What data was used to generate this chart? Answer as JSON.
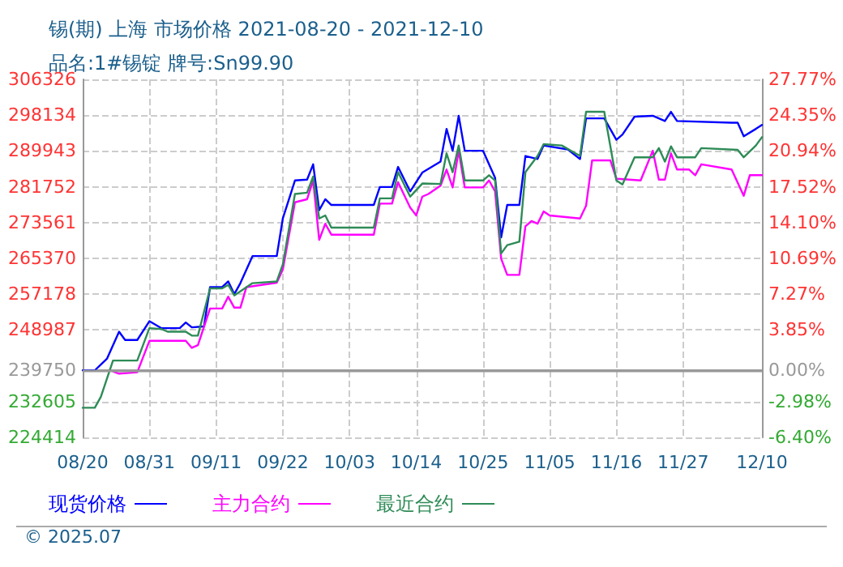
{
  "chart_data": {
    "type": "line",
    "title": "锡(期) 上海 市场价格 2021-08-20 - 2021-12-10",
    "subtitle": "品名:1#锡锭 牌号:Sn99.90",
    "annotations": [
      "© 2025.07"
    ],
    "xlim": [
      "2021-08-20",
      "2021-12-10"
    ],
    "xticks": [
      {
        "value": "2021-08-20",
        "label": "08/20"
      },
      {
        "value": "2021-08-31",
        "label": "08/31"
      },
      {
        "value": "2021-09-11",
        "label": "09/11"
      },
      {
        "value": "2021-09-22",
        "label": "09/22"
      },
      {
        "value": "2021-10-03",
        "label": "10/03"
      },
      {
        "value": "2021-10-14",
        "label": "10/14"
      },
      {
        "value": "2021-10-25",
        "label": "10/25"
      },
      {
        "value": "2021-11-05",
        "label": "11/05"
      },
      {
        "value": "2021-11-16",
        "label": "11/16"
      },
      {
        "value": "2021-11-27",
        "label": "11/27"
      },
      {
        "value": "2021-12-10",
        "label": "12/10"
      }
    ],
    "ylim": [
      224414,
      306326
    ],
    "yticks": [
      224414,
      232605,
      239750,
      248987,
      257178,
      265370,
      273561,
      281752,
      289943,
      298134,
      306326
    ],
    "y2lim": [
      -6.4,
      27.77
    ],
    "y2ticks": [
      {
        "value": -6.4,
        "label": "-6.40%"
      },
      {
        "value": -2.98,
        "label": "-2.98%"
      },
      {
        "value": 0,
        "label": "0.00%"
      },
      {
        "value": 3.85,
        "label": "3.85%"
      },
      {
        "value": 7.27,
        "label": "7.27%"
      },
      {
        "value": 10.69,
        "label": "10.69%"
      },
      {
        "value": 14.1,
        "label": "14.10%"
      },
      {
        "value": 17.52,
        "label": "17.52%"
      },
      {
        "value": 20.94,
        "label": "20.94%"
      },
      {
        "value": 24.35,
        "label": "24.35%"
      },
      {
        "value": 27.77,
        "label": "27.77%"
      }
    ],
    "ref_lines": [
      {
        "axis": "y",
        "value": 239750,
        "color": "#999999"
      }
    ],
    "grid": true,
    "legend": "bottom",
    "marker": "none",
    "line_style": "solid",
    "series": [
      {
        "name": "现货价格",
        "color": "#0000ff",
        "x": [
          "2021-08-20",
          "2021-08-22",
          "2021-08-24",
          "2021-08-26",
          "2021-08-27",
          "2021-08-29",
          "2021-08-31",
          "2021-09-02",
          "2021-09-05",
          "2021-09-06",
          "2021-09-07",
          "2021-09-09",
          "2021-09-10",
          "2021-09-12",
          "2021-09-13",
          "2021-09-14",
          "2021-09-15",
          "2021-09-17",
          "2021-09-21",
          "2021-09-22",
          "2021-09-24",
          "2021-09-26",
          "2021-09-27",
          "2021-09-28",
          "2021-09-29",
          "2021-09-30",
          "2021-10-07",
          "2021-10-08",
          "2021-10-10",
          "2021-10-11",
          "2021-10-13",
          "2021-10-15",
          "2021-10-18",
          "2021-10-19",
          "2021-10-20",
          "2021-10-21",
          "2021-10-22",
          "2021-10-25",
          "2021-10-26",
          "2021-10-27",
          "2021-10-28",
          "2021-10-29",
          "2021-10-31",
          "2021-11-01",
          "2021-11-03",
          "2021-11-04",
          "2021-11-08",
          "2021-11-10",
          "2021-11-11",
          "2021-11-14",
          "2021-11-16",
          "2021-11-17",
          "2021-11-19",
          "2021-11-22",
          "2021-11-24",
          "2021-11-25",
          "2021-11-26",
          "2021-12-05",
          "2021-12-06",
          "2021-12-07",
          "2021-12-09",
          "2021-12-10"
        ],
        "values": [
          239750,
          239750,
          242400,
          248600,
          246700,
          246700,
          251000,
          249400,
          249400,
          250700,
          249600,
          249800,
          258800,
          258800,
          260100,
          257200,
          259700,
          265900,
          265900,
          274500,
          283200,
          283400,
          286900,
          276400,
          278900,
          277600,
          277600,
          281700,
          281700,
          286300,
          280700,
          285000,
          287500,
          295000,
          290000,
          298000,
          290000,
          290000,
          286900,
          283800,
          270200,
          277600,
          277600,
          288800,
          288100,
          291200,
          290300,
          288100,
          297400,
          297400,
          292500,
          293700,
          297800,
          298000,
          296800,
          298900,
          296800,
          296400,
          296400,
          293300,
          295000,
          295900
        ]
      },
      {
        "name": "主力合约",
        "color": "#ff00ff",
        "x": [
          "2021-08-25",
          "2021-08-26",
          "2021-08-29",
          "2021-08-31",
          "2021-09-06",
          "2021-09-07",
          "2021-09-08",
          "2021-09-10",
          "2021-09-12",
          "2021-09-13",
          "2021-09-14",
          "2021-09-15",
          "2021-09-16",
          "2021-09-21",
          "2021-09-22",
          "2021-09-24",
          "2021-09-26",
          "2021-09-27",
          "2021-09-28",
          "2021-09-29",
          "2021-09-30",
          "2021-10-07",
          "2021-10-08",
          "2021-10-10",
          "2021-10-11",
          "2021-10-13",
          "2021-10-14",
          "2021-10-15",
          "2021-10-16",
          "2021-10-18",
          "2021-10-19",
          "2021-10-20",
          "2021-10-21",
          "2021-10-22",
          "2021-10-25",
          "2021-10-26",
          "2021-10-27",
          "2021-10-28",
          "2021-10-29",
          "2021-10-31",
          "2021-11-01",
          "2021-11-02",
          "2021-11-03",
          "2021-11-04",
          "2021-11-05",
          "2021-11-10",
          "2021-11-11",
          "2021-11-12",
          "2021-11-15",
          "2021-11-16",
          "2021-11-20",
          "2021-11-22",
          "2021-11-23",
          "2021-11-24",
          "2021-11-25",
          "2021-11-26",
          "2021-11-28",
          "2021-11-29",
          "2021-11-30",
          "2021-12-05",
          "2021-12-07",
          "2021-12-08",
          "2021-12-10"
        ],
        "values": [
          239500,
          239000,
          239300,
          246500,
          246500,
          244900,
          245500,
          253900,
          253900,
          256600,
          254100,
          254100,
          258800,
          259800,
          262800,
          278200,
          278900,
          283200,
          269600,
          273300,
          270800,
          270800,
          277900,
          277900,
          282800,
          277000,
          275200,
          279500,
          280100,
          282000,
          285700,
          281600,
          290000,
          281600,
          281600,
          283200,
          280700,
          265300,
          261600,
          261600,
          272700,
          273900,
          273300,
          276100,
          275200,
          274500,
          277400,
          287800,
          287800,
          283600,
          283200,
          290000,
          283400,
          283400,
          289400,
          285700,
          285700,
          284400,
          286900,
          285700,
          279700,
          284400,
          284400
        ]
      },
      {
        "name": "最近合约",
        "color": "#2e8b57",
        "x": [
          "2021-08-20",
          "2021-08-22",
          "2021-08-23",
          "2021-08-25",
          "2021-08-29",
          "2021-08-31",
          "2021-09-02",
          "2021-09-03",
          "2021-09-06",
          "2021-09-07",
          "2021-09-08",
          "2021-09-10",
          "2021-09-12",
          "2021-09-13",
          "2021-09-14",
          "2021-09-17",
          "2021-09-21",
          "2021-09-22",
          "2021-09-24",
          "2021-09-26",
          "2021-09-27",
          "2021-09-28",
          "2021-09-29",
          "2021-09-30",
          "2021-10-07",
          "2021-10-08",
          "2021-10-10",
          "2021-10-11",
          "2021-10-13",
          "2021-10-15",
          "2021-10-18",
          "2021-10-19",
          "2021-10-20",
          "2021-10-21",
          "2021-10-22",
          "2021-10-25",
          "2021-10-26",
          "2021-10-27",
          "2021-10-28",
          "2021-10-29",
          "2021-10-31",
          "2021-11-01",
          "2021-11-03",
          "2021-11-04",
          "2021-11-07",
          "2021-11-10",
          "2021-11-11",
          "2021-11-14",
          "2021-11-16",
          "2021-11-17",
          "2021-11-19",
          "2021-11-22",
          "2021-11-23",
          "2021-11-24",
          "2021-11-25",
          "2021-11-26",
          "2021-11-29",
          "2021-11-30",
          "2021-12-06",
          "2021-12-07",
          "2021-12-09",
          "2021-12-10"
        ],
        "values": [
          231200,
          231200,
          233700,
          242000,
          242000,
          249400,
          249200,
          248600,
          248600,
          247700,
          247700,
          258500,
          258500,
          259300,
          256900,
          259700,
          260100,
          264000,
          280100,
          280400,
          284100,
          274500,
          275200,
          272400,
          272400,
          279100,
          279100,
          285100,
          279500,
          282500,
          282400,
          289400,
          285100,
          291200,
          283200,
          283200,
          284400,
          283200,
          266500,
          268400,
          269200,
          285100,
          288800,
          291500,
          291200,
          288800,
          298900,
          298900,
          283200,
          282300,
          288500,
          288500,
          290600,
          287500,
          291000,
          288500,
          288500,
          290600,
          290200,
          288500,
          291200,
          293100
        ]
      }
    ]
  }
}
